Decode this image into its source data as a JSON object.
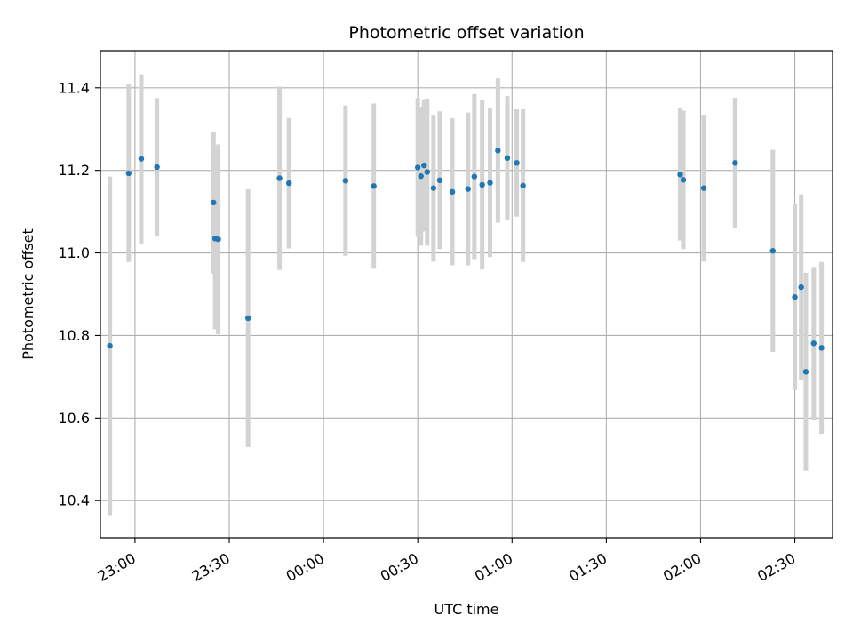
{
  "chart_data": {
    "type": "scatter",
    "title": "Photometric offset variation",
    "xlabel": "UTC time",
    "ylabel": "Photometric offset",
    "grid": true,
    "x_unit": "UTC time",
    "xlim": [
      "22:49",
      "02:42"
    ],
    "ylim": [
      10.31,
      11.49
    ],
    "x_ticks": [
      "23:00",
      "23:30",
      "00:00",
      "00:30",
      "01:00",
      "01:30",
      "02:00",
      "02:30"
    ],
    "y_ticks": [
      "10.4",
      "10.6",
      "10.8",
      "11.0",
      "11.2",
      "11.4"
    ],
    "colors": {
      "points": "#1f77b4",
      "errorbars": "#d3d3d3",
      "grid": "#b0b0b0"
    },
    "points": [
      {
        "x": "22:52",
        "y": 10.775,
        "err": 0.41
      },
      {
        "x": "22:58",
        "y": 11.193,
        "err": 0.215
      },
      {
        "x": "23:02",
        "y": 11.228,
        "err": 0.205
      },
      {
        "x": "23:07",
        "y": 11.208,
        "err": 0.167
      },
      {
        "x": "23:25",
        "y": 11.122,
        "err": 0.172
      },
      {
        "x": "23:25.5",
        "y": 11.035,
        "err": 0.22
      },
      {
        "x": "23:26.5",
        "y": 11.033,
        "err": 0.23
      },
      {
        "x": "23:36",
        "y": 10.842,
        "err": 0.312
      },
      {
        "x": "23:46",
        "y": 11.181,
        "err": 0.222
      },
      {
        "x": "23:49",
        "y": 11.169,
        "err": 0.158
      },
      {
        "x": "00:07",
        "y": 11.175,
        "err": 0.182
      },
      {
        "x": "00:16",
        "y": 11.162,
        "err": 0.2
      },
      {
        "x": "00:30",
        "y": 11.207,
        "err": 0.168
      },
      {
        "x": "00:31",
        "y": 11.186,
        "err": 0.168
      },
      {
        "x": "00:32",
        "y": 11.212,
        "err": 0.16
      },
      {
        "x": "00:33",
        "y": 11.196,
        "err": 0.178
      },
      {
        "x": "00:35",
        "y": 11.157,
        "err": 0.178
      },
      {
        "x": "00:37",
        "y": 11.176,
        "err": 0.167
      },
      {
        "x": "00:41",
        "y": 11.148,
        "err": 0.178
      },
      {
        "x": "00:46",
        "y": 11.155,
        "err": 0.185
      },
      {
        "x": "00:48",
        "y": 11.185,
        "err": 0.2
      },
      {
        "x": "00:50.5",
        "y": 11.165,
        "err": 0.205
      },
      {
        "x": "00:53",
        "y": 11.17,
        "err": 0.18
      },
      {
        "x": "00:55.5",
        "y": 11.248,
        "err": 0.175
      },
      {
        "x": "00:58.5",
        "y": 11.23,
        "err": 0.15
      },
      {
        "x": "01:01.5",
        "y": 11.218,
        "err": 0.13
      },
      {
        "x": "01:03.5",
        "y": 11.163,
        "err": 0.185
      },
      {
        "x": "01:53.5",
        "y": 11.19,
        "err": 0.16
      },
      {
        "x": "01:54.5",
        "y": 11.177,
        "err": 0.168
      },
      {
        "x": "02:01",
        "y": 11.157,
        "err": 0.178
      },
      {
        "x": "02:11",
        "y": 11.218,
        "err": 0.158
      },
      {
        "x": "02:23",
        "y": 11.005,
        "err": 0.245
      },
      {
        "x": "02:30",
        "y": 10.893,
        "err": 0.225
      },
      {
        "x": "02:32",
        "y": 10.917,
        "err": 0.225
      },
      {
        "x": "02:33.5",
        "y": 10.712,
        "err": 0.24
      },
      {
        "x": "02:36",
        "y": 10.781,
        "err": 0.185
      },
      {
        "x": "02:38.5",
        "y": 10.77,
        "err": 0.208
      }
    ]
  }
}
